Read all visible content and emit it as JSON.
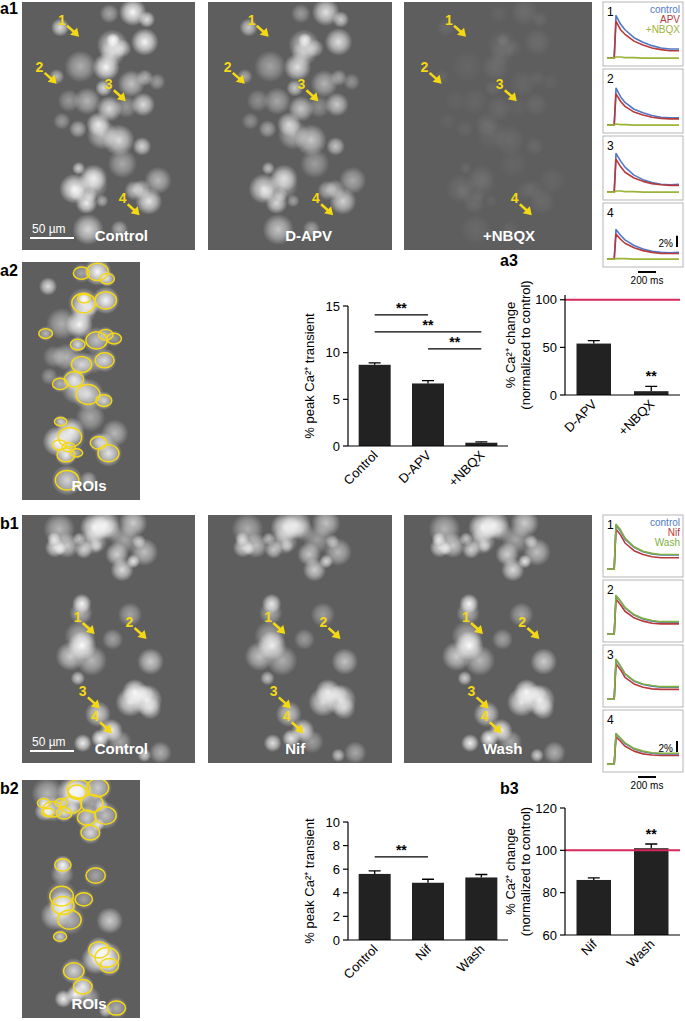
{
  "figure": {
    "panel_labels": [
      "a1",
      "a2",
      "a3",
      "b1",
      "b2",
      "b3"
    ],
    "images": [
      {
        "label": "Control",
        "scale_bar": "50 µm",
        "arrows": [
          "1",
          "2",
          "3",
          "4"
        ]
      },
      {
        "label": "D-APV",
        "arrows": [
          "1",
          "2",
          "3",
          "4"
        ]
      },
      {
        "label": "+NBQX",
        "arrows": [
          "1",
          "2",
          "3",
          "4"
        ]
      },
      {
        "label": "ROIs"
      },
      {
        "label": "Control",
        "scale_bar": "50 µm",
        "arrows": [
          "1",
          "2",
          "3",
          "4"
        ]
      },
      {
        "label": "Nif",
        "arrows": [
          "1",
          "2",
          "3",
          "4"
        ]
      },
      {
        "label": "Wash",
        "arrows": [
          "1",
          "2",
          "3",
          "4"
        ]
      },
      {
        "label": "ROIs"
      }
    ]
  },
  "chart_data": [
    {
      "type": "line",
      "title": "1",
      "x": [
        0,
        80,
        100,
        150,
        200,
        300,
        400,
        500,
        600,
        700,
        800
      ],
      "xlim": [
        0,
        800
      ],
      "ylim": [
        -0.5,
        9
      ],
      "tick_labels": false,
      "legend": "top right",
      "series": [
        {
          "name": "control",
          "color": "#4f79c9",
          "values": [
            0,
            0,
            7.5,
            6,
            5,
            3.6,
            2.8,
            2.2,
            1.8,
            1.6,
            1.6
          ]
        },
        {
          "name": "APV",
          "color": "#b83a3a",
          "values": [
            0,
            0,
            6.5,
            5,
            4.2,
            3,
            2.3,
            1.8,
            1.5,
            1.3,
            1.3
          ]
        },
        {
          "name": "+NBQX",
          "color": "#9bb53a",
          "values": [
            0,
            0,
            0.2,
            0.2,
            0.1,
            0.1,
            0,
            0,
            0,
            0,
            0
          ]
        }
      ]
    },
    {
      "type": "line",
      "title": "2",
      "x": [
        0,
        80,
        100,
        150,
        200,
        300,
        400,
        500,
        600,
        700,
        800
      ],
      "xlim": [
        0,
        800
      ],
      "ylim": [
        -0.5,
        9
      ],
      "tick_labels": false,
      "series": [
        {
          "name": "control",
          "color": "#4f79c9",
          "values": [
            0,
            0,
            6.5,
            5,
            4,
            2.8,
            2.2,
            1.7,
            1.4,
            1.3,
            1.3
          ]
        },
        {
          "name": "APV",
          "color": "#b83a3a",
          "values": [
            0,
            0,
            5.5,
            4.2,
            3.3,
            2.3,
            1.8,
            1.4,
            1.2,
            1.1,
            1.1
          ]
        },
        {
          "name": "+NBQX",
          "color": "#9bb53a",
          "values": [
            0,
            0,
            0.2,
            0.1,
            0.1,
            0,
            0,
            0,
            0,
            0,
            0
          ]
        }
      ]
    },
    {
      "type": "line",
      "title": "3",
      "x": [
        0,
        80,
        100,
        150,
        200,
        300,
        400,
        500,
        600,
        700,
        800
      ],
      "xlim": [
        0,
        800
      ],
      "ylim": [
        -0.5,
        9
      ],
      "tick_labels": false,
      "series": [
        {
          "name": "control",
          "color": "#4f79c9",
          "values": [
            0,
            0,
            6.8,
            5.5,
            4.4,
            3,
            2.2,
            1.7,
            1.4,
            1.3,
            1.4
          ]
        },
        {
          "name": "APV",
          "color": "#b83a3a",
          "values": [
            0,
            0,
            5.8,
            4.5,
            3.5,
            2.5,
            1.9,
            1.5,
            1.3,
            1.2,
            1.2
          ]
        },
        {
          "name": "+NBQX",
          "color": "#9bb53a",
          "values": [
            0,
            0,
            0.2,
            0.2,
            0.1,
            0.1,
            0,
            0,
            0,
            0,
            0
          ]
        }
      ]
    },
    {
      "type": "line",
      "title": "4",
      "x": [
        0,
        80,
        100,
        150,
        200,
        300,
        400,
        500,
        600,
        700,
        800
      ],
      "xlim": [
        0,
        800
      ],
      "ylim": [
        -0.5,
        9
      ],
      "tick_labels": false,
      "scale_bars": {
        "y": 2,
        "y_label": "2%",
        "x": 200,
        "x_label": "200 ms"
      },
      "series": [
        {
          "name": "control",
          "color": "#4f79c9",
          "values": [
            0,
            0,
            5.2,
            4.2,
            3.4,
            2.4,
            1.8,
            1.4,
            1.2,
            1.1,
            1.2
          ]
        },
        {
          "name": "APV",
          "color": "#b83a3a",
          "values": [
            0,
            0,
            4.4,
            3.5,
            2.8,
            2,
            1.5,
            1.2,
            1,
            1,
            1
          ]
        },
        {
          "name": "+NBQX",
          "color": "#9bb53a",
          "values": [
            0,
            0,
            0.1,
            0.1,
            0.1,
            0,
            0,
            0,
            0,
            0,
            0
          ]
        }
      ]
    },
    {
      "type": "bar",
      "categories": [
        "Control",
        "D-APV",
        "+NBQX"
      ],
      "values": [
        8.7,
        6.7,
        0.35
      ],
      "errors": [
        0.2,
        0.3,
        0.1
      ],
      "color": "#222222",
      "ylim": [
        0,
        15
      ],
      "yticks": [
        0,
        5,
        10,
        15
      ],
      "y_label": "% peak Ca²⁺ transient",
      "significance": [
        {
          "pair": [
            0,
            1
          ],
          "label": "**"
        },
        {
          "pair": [
            0,
            2
          ],
          "label": "**"
        },
        {
          "pair": [
            1,
            2
          ],
          "label": "**"
        }
      ]
    },
    {
      "type": "bar",
      "categories": [
        "D-APV",
        "+NBQX"
      ],
      "values": [
        54,
        4
      ],
      "errors": [
        3,
        5
      ],
      "color": "#222222",
      "ylim": [
        0,
        105
      ],
      "yticks": [
        0,
        50,
        100
      ],
      "y_label": [
        "% Ca²⁺ change",
        "(normalized to control)"
      ],
      "reference_line": 100,
      "annotations": [
        {
          "index": 1,
          "label": "**"
        }
      ]
    },
    {
      "type": "line",
      "title": "1",
      "x": [
        0,
        80,
        100,
        150,
        200,
        300,
        400,
        500,
        600,
        700,
        800
      ],
      "xlim": [
        0,
        800
      ],
      "ylim": [
        -0.5,
        9
      ],
      "tick_labels": false,
      "legend": "top right",
      "series": [
        {
          "name": "control",
          "color": "#4f79c9",
          "values": [
            0,
            0,
            8,
            7,
            5.5,
            4,
            3.2,
            2.8,
            2.6,
            2.6,
            2.6
          ]
        },
        {
          "name": "Nif",
          "color": "#b83a3a",
          "values": [
            0,
            0,
            7.3,
            6.3,
            4.8,
            3.4,
            2.7,
            2.3,
            2.1,
            2.1,
            2.1
          ]
        },
        {
          "name": "Wash",
          "color": "#7fb041",
          "values": [
            0,
            0,
            8.2,
            7.2,
            5.7,
            4.1,
            3.3,
            2.9,
            2.7,
            2.7,
            2.7
          ]
        }
      ]
    },
    {
      "type": "line",
      "title": "2",
      "x": [
        0,
        80,
        100,
        150,
        200,
        300,
        400,
        500,
        600,
        700,
        800
      ],
      "xlim": [
        0,
        800
      ],
      "ylim": [
        -0.5,
        9
      ],
      "tick_labels": false,
      "series": [
        {
          "name": "control",
          "color": "#4f79c9",
          "values": [
            0,
            0,
            7,
            6,
            4.8,
            3.5,
            2.8,
            2.4,
            2.2,
            2.2,
            2.2
          ]
        },
        {
          "name": "Nif",
          "color": "#b83a3a",
          "values": [
            0,
            0,
            6.4,
            5.4,
            4.2,
            3,
            2.4,
            2,
            1.9,
            1.9,
            1.9
          ]
        },
        {
          "name": "Wash",
          "color": "#7fb041",
          "values": [
            0,
            0,
            7.1,
            6.1,
            4.9,
            3.6,
            2.9,
            2.5,
            2.3,
            2.3,
            2.3
          ]
        }
      ]
    },
    {
      "type": "line",
      "title": "3",
      "x": [
        0,
        80,
        100,
        150,
        200,
        300,
        400,
        500,
        600,
        700,
        800
      ],
      "xlim": [
        0,
        800
      ],
      "ylim": [
        -0.5,
        9
      ],
      "tick_labels": false,
      "series": [
        {
          "name": "control",
          "color": "#4f79c9",
          "values": [
            0,
            0,
            7.2,
            6,
            4.6,
            3.3,
            2.7,
            2.4,
            2.2,
            2.2,
            2.2
          ]
        },
        {
          "name": "Nif",
          "color": "#b83a3a",
          "values": [
            0,
            0,
            6.5,
            5.4,
            4,
            2.8,
            2.2,
            1.9,
            1.8,
            1.8,
            1.8
          ]
        },
        {
          "name": "Wash",
          "color": "#7fb041",
          "values": [
            0,
            0,
            7.3,
            6.1,
            4.7,
            3.4,
            2.8,
            2.5,
            2.3,
            2.3,
            2.3
          ]
        }
      ]
    },
    {
      "type": "line",
      "title": "4",
      "x": [
        0,
        80,
        100,
        150,
        200,
        300,
        400,
        500,
        600,
        700,
        800
      ],
      "xlim": [
        0,
        800
      ],
      "ylim": [
        -0.5,
        9
      ],
      "tick_labels": false,
      "scale_bars": {
        "y": 2,
        "y_label": "2%",
        "x": 200,
        "x_label": "200 ms"
      },
      "series": [
        {
          "name": "control",
          "color": "#4f79c9",
          "values": [
            0,
            0,
            5.5,
            4.7,
            3.8,
            2.8,
            2.3,
            2,
            1.9,
            1.9,
            1.9
          ]
        },
        {
          "name": "Nif",
          "color": "#b83a3a",
          "values": [
            0,
            0,
            5,
            4.2,
            3.3,
            2.4,
            1.9,
            1.7,
            1.6,
            1.6,
            1.6
          ]
        },
        {
          "name": "Wash",
          "color": "#7fb041",
          "values": [
            0,
            0,
            5.6,
            4.8,
            3.9,
            2.9,
            2.4,
            2.1,
            2,
            2,
            2
          ]
        }
      ]
    },
    {
      "type": "bar",
      "categories": [
        "Control",
        "Nif",
        "Wash"
      ],
      "values": [
        5.6,
        4.85,
        5.3
      ],
      "errors": [
        0.25,
        0.3,
        0.25
      ],
      "color": "#222222",
      "ylim": [
        0,
        10
      ],
      "yticks": [
        0,
        2,
        4,
        6,
        8,
        10
      ],
      "y_label": "% peak Ca²⁺ transient",
      "significance": [
        {
          "pair": [
            0,
            1
          ],
          "label": "**"
        }
      ]
    },
    {
      "type": "bar",
      "categories": [
        "Nif",
        "Wash"
      ],
      "values": [
        86,
        101
      ],
      "errors": [
        1,
        2
      ],
      "color": "#222222",
      "ylim": [
        60,
        120
      ],
      "yticks": [
        60,
        80,
        100,
        120
      ],
      "y_label": [
        "% Ca²⁺ change",
        "(normalized to control)"
      ],
      "reference_line": 100,
      "annotations": [
        {
          "index": 1,
          "label": "**"
        }
      ]
    }
  ]
}
